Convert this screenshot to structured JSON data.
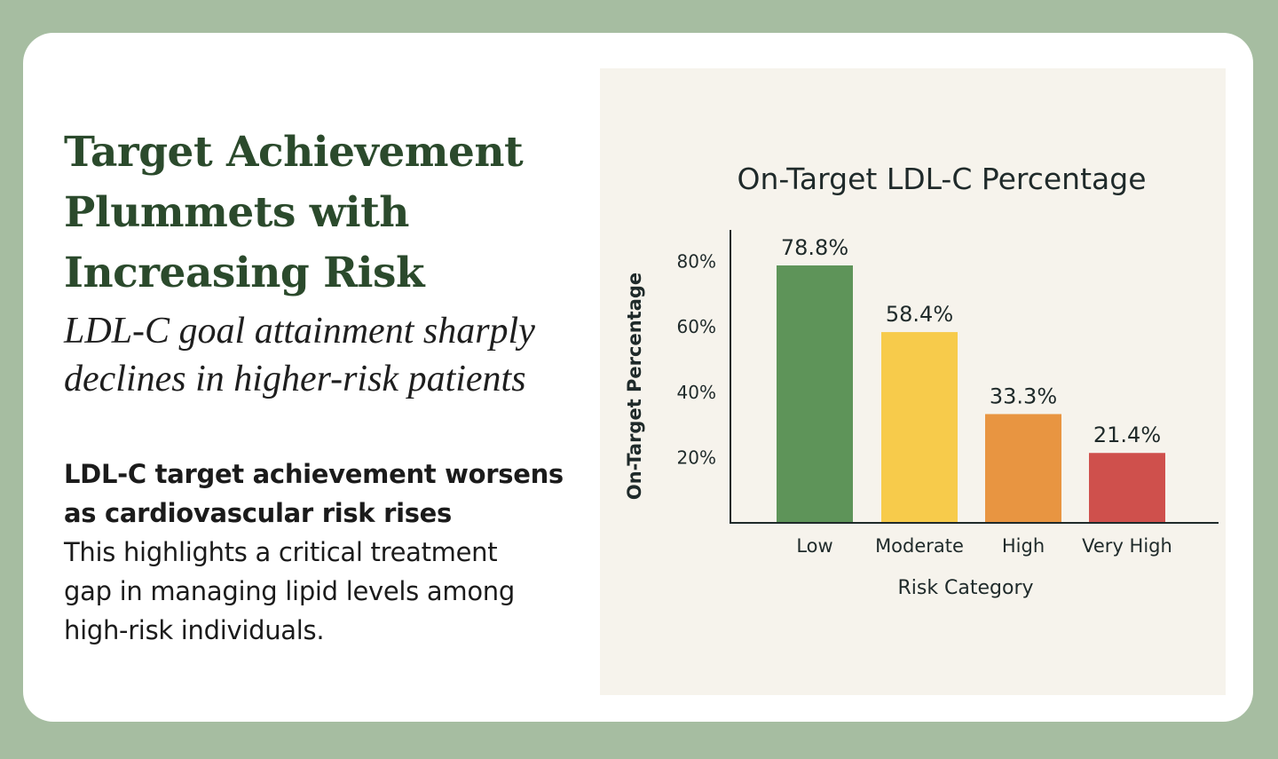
{
  "left": {
    "headline_lines": [
      "Target Achievement",
      "Plummets with",
      "Increasing Risk"
    ],
    "subhead_lines": [
      "LDL-C goal attainment sharply",
      "declines in higher-risk patients"
    ],
    "body_lead_lines": [
      "LDL-C target achievement worsens",
      "as cardiovascular risk rises"
    ],
    "body_text_lines": [
      "This highlights a critical treatment",
      "gap in managing lipid levels among",
      "high-risk individuals."
    ]
  },
  "colors": {
    "frame": "#a6bda1",
    "headline": "#2b4a2c",
    "panel": "#f6f3ec"
  },
  "chart_data": {
    "type": "bar",
    "title": "On-Target LDL-C Percentage",
    "xlabel": "Risk Category",
    "ylabel": "On-Target Percentage",
    "categories": [
      "Low",
      "Moderate",
      "High",
      "Very High"
    ],
    "values": [
      78.8,
      58.4,
      33.3,
      21.4
    ],
    "value_labels": [
      "78.8%",
      "58.4%",
      "33.3%",
      "21.4%"
    ],
    "bar_colors": [
      "#5e9459",
      "#f7cb4b",
      "#e89541",
      "#cf504c"
    ],
    "yticks": [
      20,
      40,
      60,
      80
    ],
    "ytick_labels": [
      "20%",
      "40%",
      "60%",
      "80%"
    ],
    "ylim": [
      0,
      90
    ],
    "grid": false
  }
}
